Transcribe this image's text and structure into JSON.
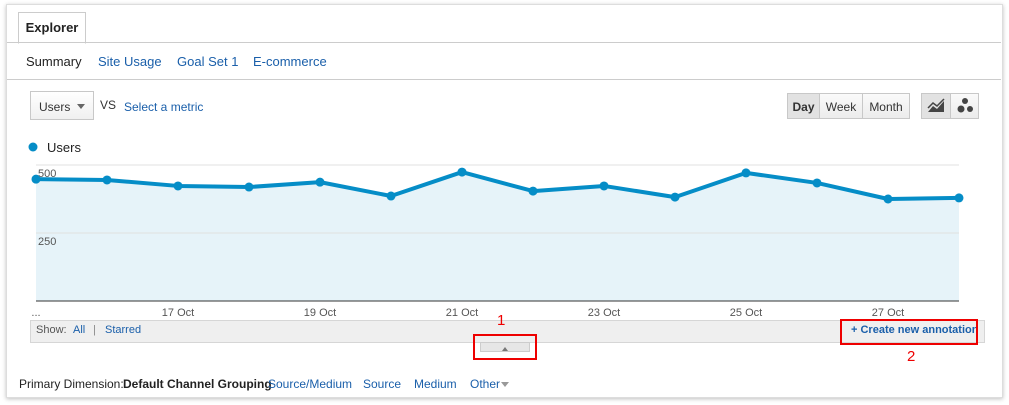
{
  "tabs": [
    "Explorer"
  ],
  "subnav": [
    "Summary",
    "Site Usage",
    "Goal Set 1",
    "E-commerce"
  ],
  "metric_controls": {
    "metric": "Users",
    "vs": "VS",
    "select_metric": "Select a metric"
  },
  "granularity": [
    "Day",
    "Week",
    "Month"
  ],
  "chart_data": {
    "type": "line",
    "categories": [
      "...",
      null,
      "17 Oct",
      null,
      "19 Oct",
      null,
      "21 Oct",
      null,
      "23 Oct",
      null,
      "25 Oct",
      null,
      "27 Oct",
      null
    ],
    "series": [
      {
        "name": "Users",
        "color": "#058dc7",
        "values": [
          448,
          445,
          423,
          419,
          437,
          386,
          474,
          404,
          423,
          382,
          471,
          434,
          375,
          379
        ]
      }
    ],
    "ylim": [
      0,
      500
    ],
    "yticks": [
      250,
      500
    ],
    "grid": true,
    "area": true
  },
  "annotation_bar": {
    "show": "Show:",
    "all": "All",
    "separator": "|",
    "starred": "Starred",
    "create": "+ Create new annotation"
  },
  "callouts": [
    "1",
    "2"
  ],
  "primary_dimension": {
    "label": "Primary Dimension:",
    "options": [
      "Default Channel Grouping",
      "Source/Medium",
      "Source",
      "Medium",
      "Other"
    ]
  }
}
